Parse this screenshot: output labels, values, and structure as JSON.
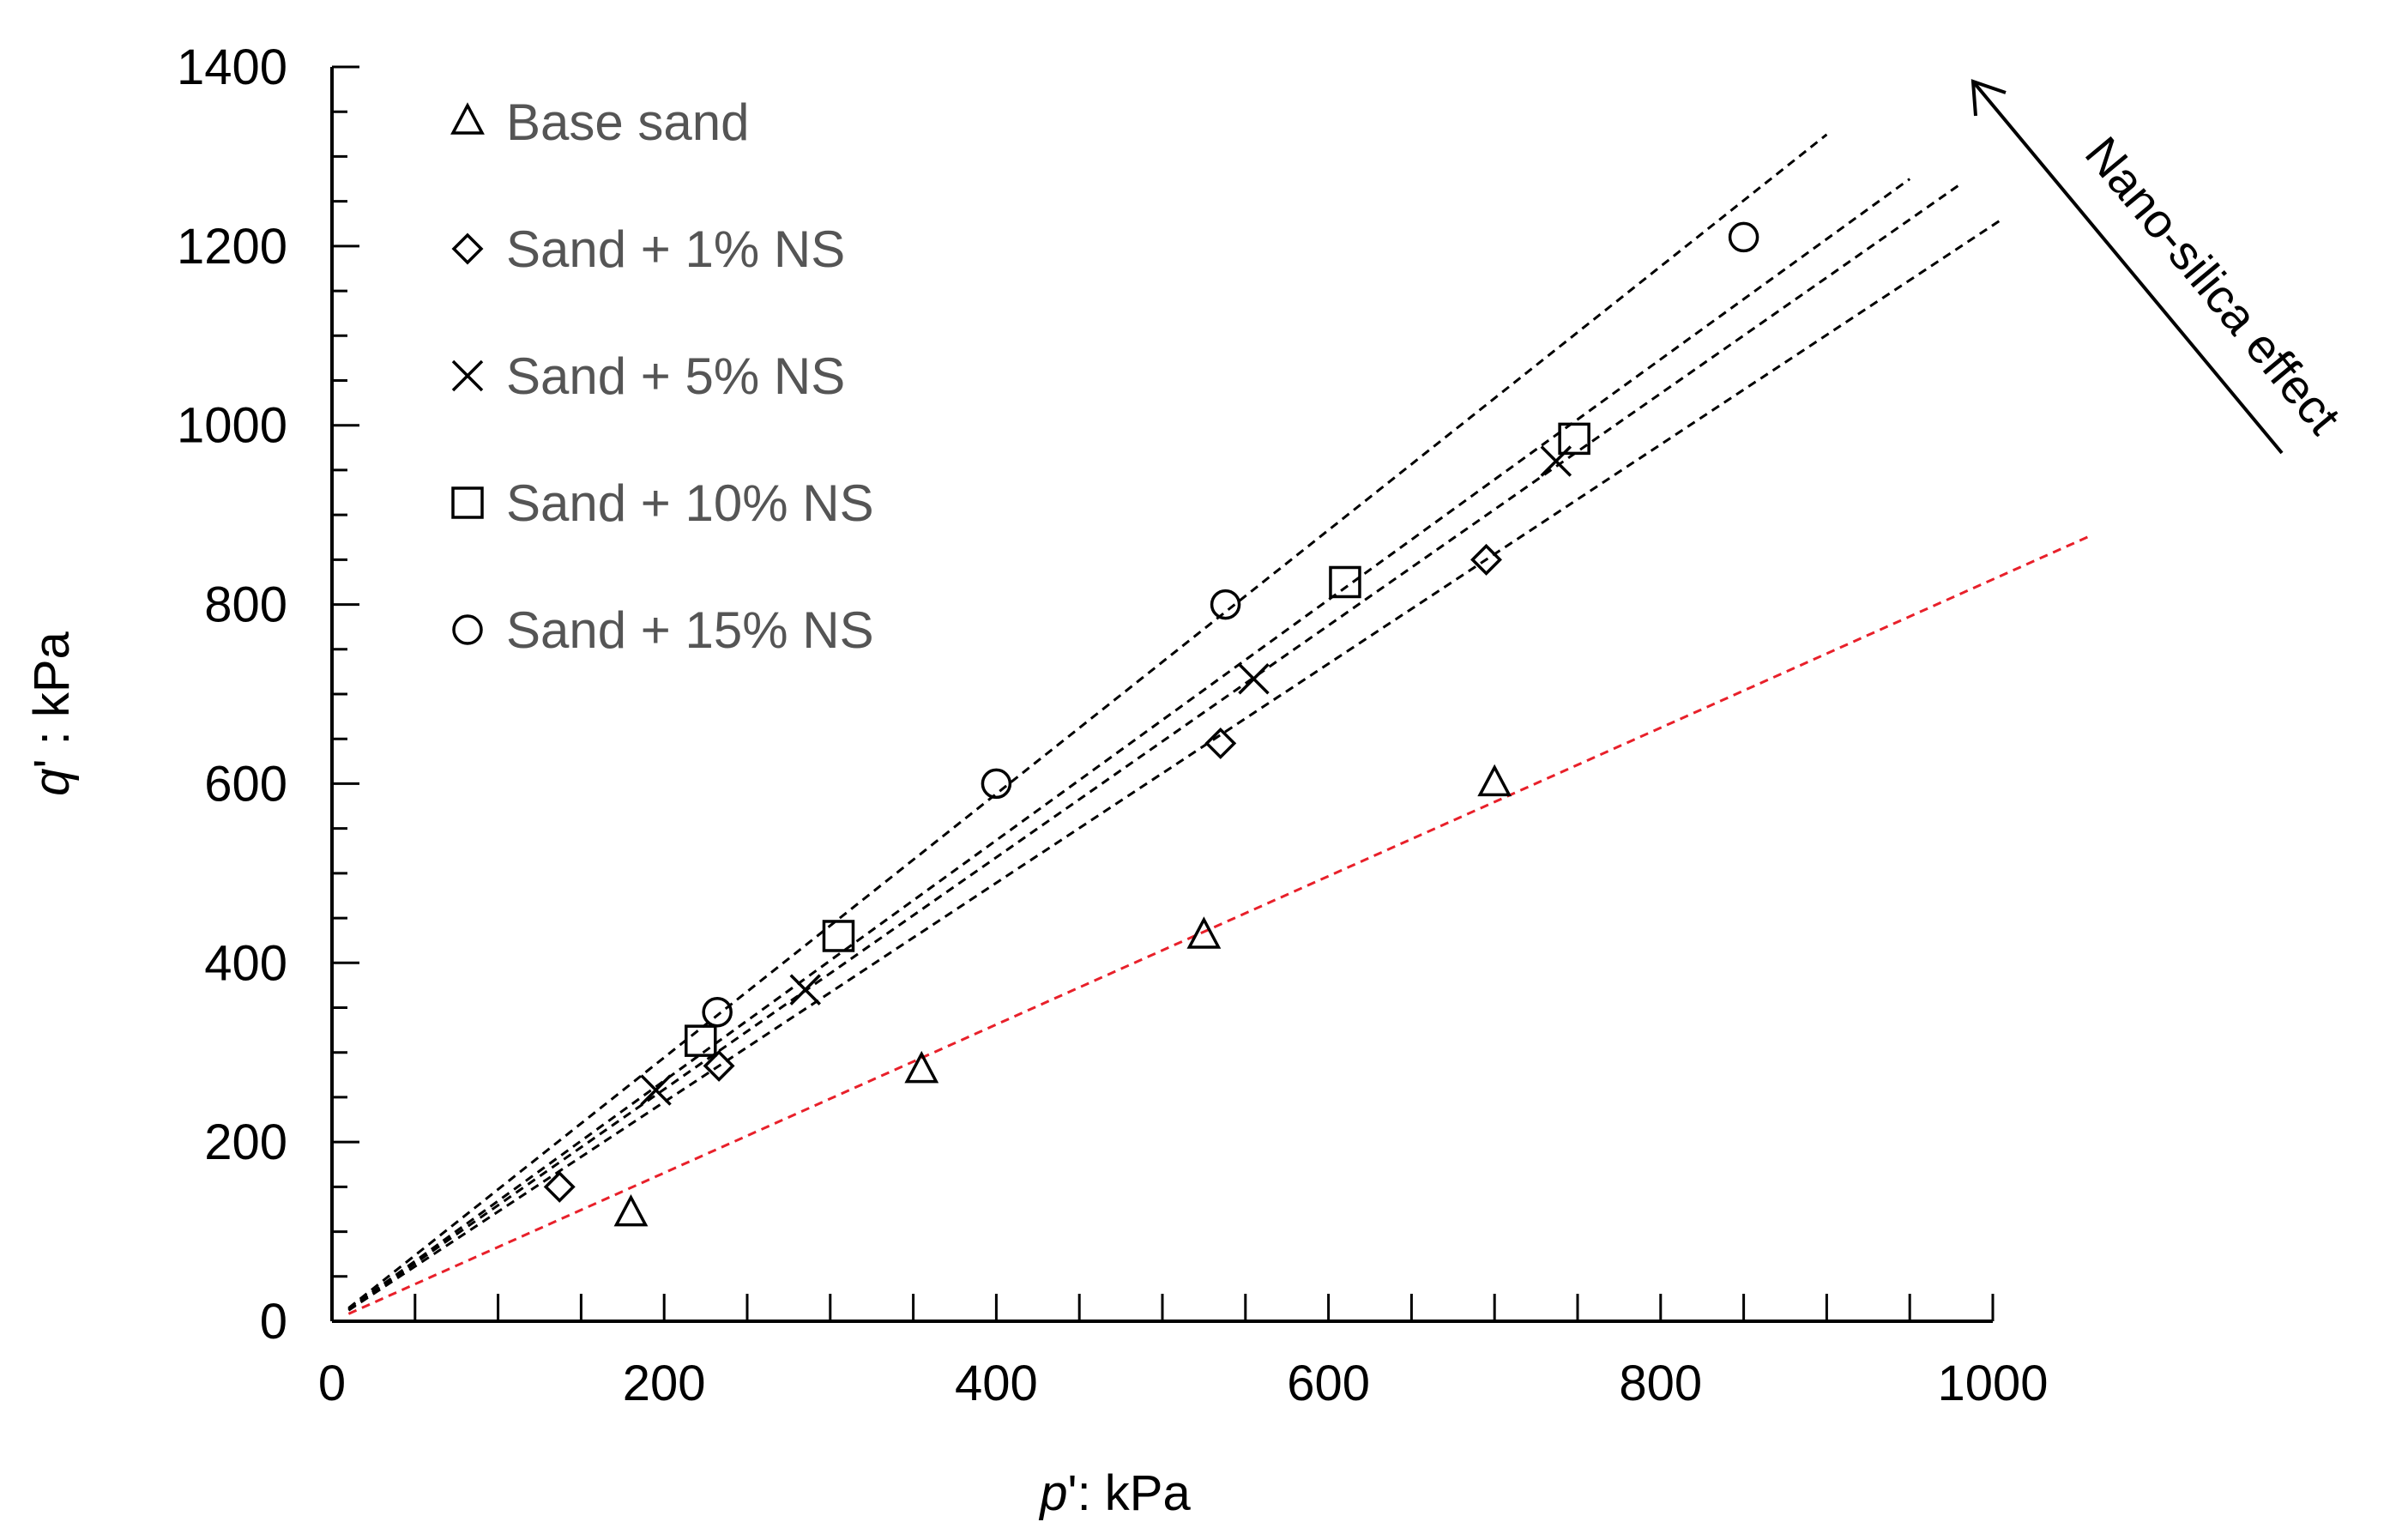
{
  "chart_data": {
    "type": "scatter",
    "title": "",
    "xlabel_var": "p",
    "xlabel_rest": "': kPa",
    "ylabel_var": "q",
    "ylabel_rest": "' : kPa",
    "xlim": [
      0,
      1000
    ],
    "ylim": [
      0,
      1400
    ],
    "x_ticks": [
      0,
      200,
      400,
      600,
      800,
      1000
    ],
    "x_tick_labels": [
      "0",
      "200",
      "400",
      "600",
      "800",
      "1000"
    ],
    "y_ticks": [
      0,
      200,
      400,
      600,
      800,
      1000,
      1200,
      1400
    ],
    "y_tick_labels": [
      "0",
      "200",
      "400",
      "600",
      "800",
      "1000",
      "1200",
      "1400"
    ],
    "grid": false,
    "legend_position": "top-left",
    "series": [
      {
        "name": "Base sand",
        "marker": "triangle",
        "x": [
          180,
          355,
          525,
          700
        ],
        "y": [
          120,
          280,
          430,
          600
        ]
      },
      {
        "name": "Sand + 1% NS",
        "marker": "diamond",
        "x": [
          137,
          233,
          535,
          695
        ],
        "y": [
          150,
          285,
          645,
          850
        ]
      },
      {
        "name": "Sand + 5% NS",
        "marker": "cross",
        "x": [
          195,
          285,
          555,
          737
        ],
        "y": [
          258,
          370,
          717,
          960
        ]
      },
      {
        "name": "Sand + 10% NS",
        "marker": "square",
        "x": [
          222,
          305,
          610,
          748
        ],
        "y": [
          313,
          430,
          825,
          985
        ]
      },
      {
        "name": "Sand + 15% NS",
        "marker": "circle",
        "x": [
          232,
          400,
          538,
          850
        ],
        "y": [
          345,
          600,
          800,
          1210
        ]
      }
    ],
    "trend_lines": [
      {
        "name": "Base sand fit",
        "slope": 0.828,
        "x_range": [
          10,
          1060
        ],
        "color": "#e8202a"
      },
      {
        "name": "Sand + 1% NS fit",
        "slope": 1.2232,
        "x_range": [
          10,
          1005
        ],
        "color": "#000000"
      },
      {
        "name": "Sand + 5% NS fit",
        "slope": 1.2944,
        "x_range": [
          10,
          980
        ],
        "color": "#000000"
      },
      {
        "name": "Sand + 10% NS fit",
        "slope": 1.3421,
        "x_range": [
          10,
          950
        ],
        "color": "#000000"
      },
      {
        "name": "Sand + 15% NS fit",
        "slope": 1.4717,
        "x_range": [
          10,
          900
        ],
        "color": "#000000"
      }
    ],
    "annotation": {
      "text": "Nano-silica effect"
    }
  }
}
